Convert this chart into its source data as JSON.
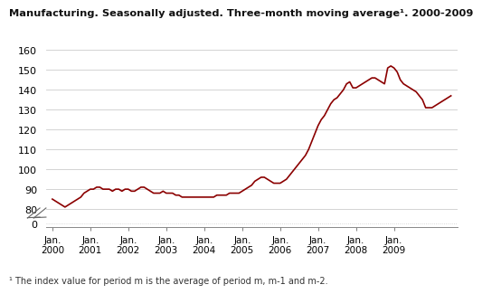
{
  "title": "Manufacturing. Seasonally adjusted. Three-month moving average¹. 2000-2009",
  "footnote": "¹ The index value for period m is the average of period m, m-1 and m-2.",
  "line_color": "#8B0000",
  "background_color": "#ffffff",
  "grid_color": "#cccccc",
  "xtick_labels": [
    "Jan.\n2000",
    "Jan.\n2001",
    "Jan.\n2002",
    "Jan.\n2003",
    "Jan.\n2004",
    "Jan.\n2005",
    "Jan.\n2006",
    "Jan.\n2007",
    "Jan.\n2008",
    "Jan.\n2009"
  ],
  "data": [
    85,
    84,
    83,
    82,
    81,
    82,
    83,
    84,
    85,
    86,
    88,
    89,
    90,
    90,
    91,
    91,
    90,
    90,
    90,
    89,
    90,
    90,
    89,
    90,
    90,
    89,
    89,
    90,
    91,
    91,
    90,
    89,
    88,
    88,
    88,
    89,
    88,
    88,
    88,
    87,
    87,
    86,
    86,
    86,
    86,
    86,
    86,
    86,
    86,
    86,
    86,
    86,
    87,
    87,
    87,
    87,
    88,
    88,
    88,
    88,
    89,
    90,
    91,
    92,
    94,
    95,
    96,
    96,
    95,
    94,
    93,
    93,
    93,
    94,
    95,
    97,
    99,
    101,
    103,
    105,
    107,
    110,
    114,
    118,
    122,
    125,
    127,
    130,
    133,
    135,
    136,
    138,
    140,
    143,
    144,
    141,
    141,
    142,
    143,
    144,
    145,
    146,
    146,
    145,
    144,
    143,
    151,
    152,
    151,
    149,
    145,
    143,
    142,
    141,
    140,
    139,
    137,
    135,
    131,
    131,
    131,
    132,
    133,
    134,
    135,
    136,
    137
  ]
}
